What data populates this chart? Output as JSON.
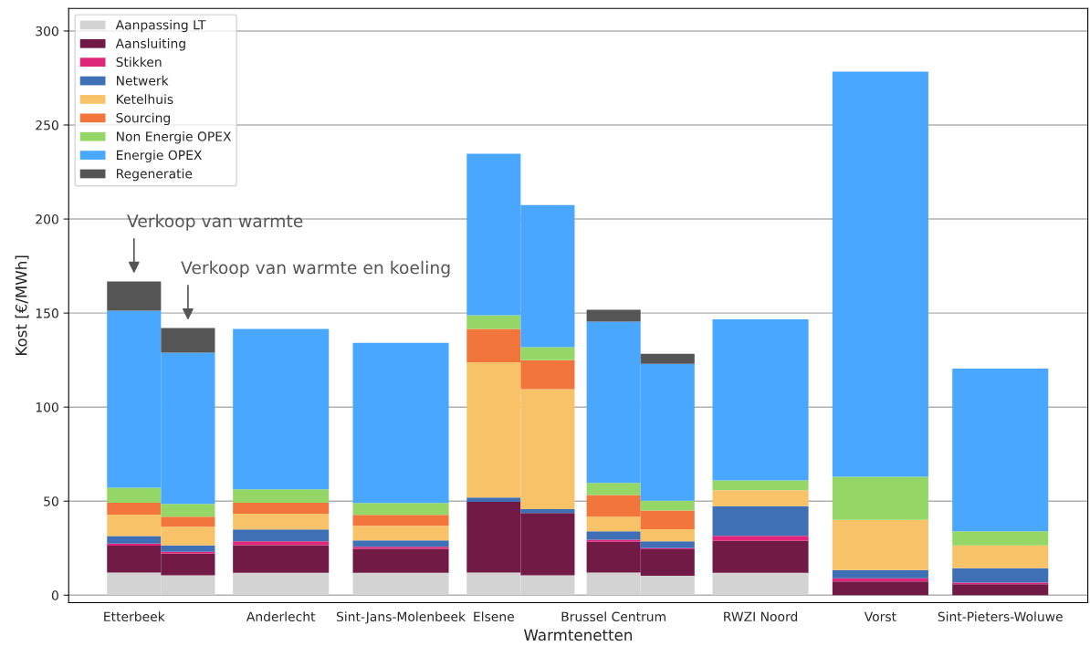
{
  "chart_data": {
    "type": "bar",
    "stacked": true,
    "xlabel": "Warmtenetten",
    "ylabel": "Kost [€/MWh]",
    "categories": [
      "Etterbeek",
      null,
      "Anderlecht",
      "Sint-Jans-Molenbeek",
      "Elsene",
      null,
      "Brussel Centrum",
      null,
      "RWZI Noord",
      "Vorst",
      "Sint-Pieters-Woluwe"
    ],
    "ylim": [
      -4,
      312
    ],
    "yticks": [
      0,
      50,
      100,
      150,
      200,
      250,
      300
    ],
    "grid": "y",
    "legend": "top left",
    "series": [
      {
        "name": "Aanpassing LT",
        "color": "#d3d3d3",
        "values": [
          12,
          10.6,
          11.9,
          11.9,
          12,
          10.6,
          12,
          10.3,
          11.9,
          0,
          0
        ]
      },
      {
        "name": "Aansluiting",
        "color": "#701a45",
        "values": [
          14.4,
          11.5,
          14.7,
          12.8,
          37.6,
          33.1,
          16.4,
          14.1,
          17,
          7.3,
          5.8
        ]
      },
      {
        "name": "Stikken",
        "color": "#e0267a",
        "values": [
          1,
          1,
          2,
          1,
          0,
          0,
          1.1,
          0.6,
          2.7,
          1.7,
          0.9
        ]
      },
      {
        "name": "Netwerk",
        "color": "#3f6fb5",
        "values": [
          4.1,
          3.4,
          6.4,
          3.5,
          2.4,
          2,
          4.5,
          3.7,
          15.7,
          4.4,
          7.7
        ]
      },
      {
        "name": "Ketelhuis",
        "color": "#f8c268",
        "values": [
          11.3,
          9.9,
          8.3,
          7.7,
          71.9,
          63.8,
          7.7,
          6.4,
          8.5,
          26.7,
          12.1
        ]
      },
      {
        "name": "Sourcing",
        "color": "#f2763b",
        "values": [
          6.4,
          5.3,
          5.8,
          5.8,
          17.7,
          15.5,
          11.6,
          9.9,
          0,
          0,
          0
        ]
      },
      {
        "name": "Non Energie OPEX",
        "color": "#94d767",
        "values": [
          8,
          6.8,
          7.2,
          6.3,
          7.2,
          6.9,
          6.4,
          5.3,
          5.3,
          22.9,
          7.5
        ]
      },
      {
        "name": "Energie OPEX",
        "color": "#49a7ff",
        "values": [
          94.1,
          80.5,
          85.3,
          85.2,
          85.9,
          75.5,
          85.8,
          72.7,
          85.6,
          215.4,
          86.5
        ]
      },
      {
        "name": "Regeneratie",
        "color": "#555555",
        "values": [
          15.5,
          13,
          0,
          0,
          0,
          0,
          6.2,
          5.3,
          0,
          0,
          0
        ]
      }
    ],
    "annotations": [
      "Verkoop van warmte",
      "Verkoop van warmte en koeling"
    ]
  }
}
